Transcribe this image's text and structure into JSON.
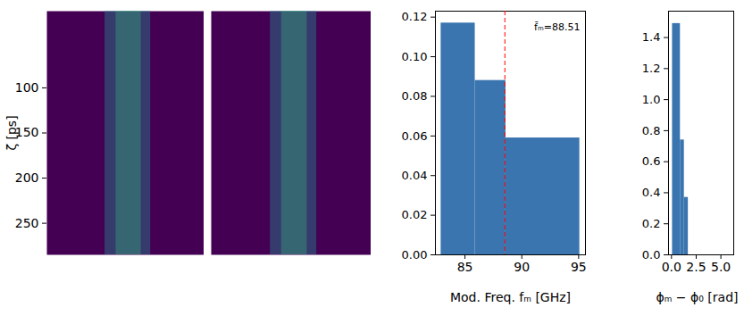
{
  "chart_data": [
    {
      "type": "image",
      "ylabel": "ζ [ps]",
      "ylim": [
        15,
        285
      ],
      "yticks": [
        100,
        150,
        200,
        250
      ],
      "tick_labels": "y",
      "color": "#440154"
    },
    {
      "type": "image",
      "ylim": [
        15,
        285
      ],
      "tick_labels": false,
      "color": "#440154"
    },
    {
      "type": "histogram",
      "xlabel": "Mod. Freq. fₘ [GHz]",
      "bins": [
        82.9,
        85.9,
        88.6,
        95.1
      ],
      "values": [
        0.117,
        0.088,
        0.059
      ],
      "color": "#3b75af",
      "xlim": [
        82.4,
        95.6
      ],
      "xticks": [
        85,
        90,
        95
      ],
      "ylim": [
        0,
        0.123
      ],
      "yticks": [
        {
          "value": 0,
          "label": "0.00"
        },
        {
          "value": 0.02,
          "label": "0.02"
        },
        {
          "value": 0.04,
          "label": "0.04"
        },
        {
          "value": 0.06,
          "label": "0.06"
        },
        {
          "value": 0.08,
          "label": "0.08"
        },
        {
          "value": 0.1,
          "label": "0.10"
        },
        {
          "value": 0.12,
          "label": "0.12"
        }
      ],
      "mean_line": {
        "value": 88.51,
        "label": "f̄ₘ=88.51",
        "color": "red",
        "line_style": "dashed"
      }
    },
    {
      "type": "histogram",
      "xlabel": "ϕₘ − ϕ₀ [rad]",
      "bins": [
        0.1,
        0.9,
        1.3,
        1.7
      ],
      "values": [
        1.49,
        0.74,
        0.37
      ],
      "color": "#3b75af",
      "xlim": [
        -0.3,
        6.3
      ],
      "xticks": [
        {
          "value": 0,
          "label": "0.0"
        },
        {
          "value": 2.5,
          "label": "2.5"
        },
        {
          "value": 5,
          "label": "5.0"
        }
      ],
      "ylim": [
        0,
        1.57
      ],
      "yticks": [
        {
          "value": 0,
          "label": "0.0"
        },
        {
          "value": 0.2,
          "label": "0.2"
        },
        {
          "value": 0.4,
          "label": "0.4"
        },
        {
          "value": 0.6,
          "label": "0.6"
        },
        {
          "value": 0.8,
          "label": "0.8"
        },
        {
          "value": 1.0,
          "label": "1.0"
        },
        {
          "value": 1.2,
          "label": "1.2"
        },
        {
          "value": 1.4,
          "label": "1.4"
        }
      ]
    }
  ]
}
